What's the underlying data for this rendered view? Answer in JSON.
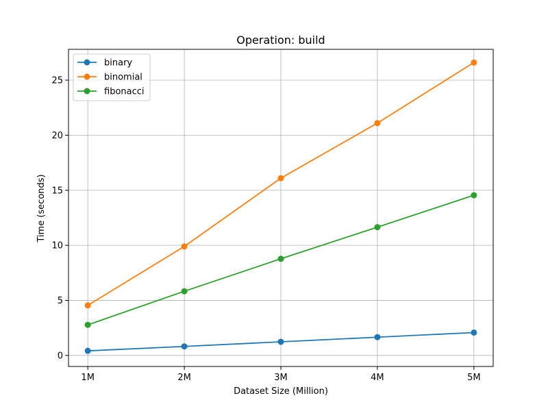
{
  "chart_data": {
    "type": "line",
    "title": "Operation: build",
    "xlabel": "Dataset Size (Million)",
    "ylabel": "Time (seconds)",
    "categories": [
      "1M",
      "2M",
      "3M",
      "4M",
      "5M"
    ],
    "x": [
      1,
      2,
      3,
      4,
      5
    ],
    "xlim": [
      0.8,
      5.2
    ],
    "ylim": [
      -1.0,
      27.8
    ],
    "yticks": [
      0,
      5,
      10,
      15,
      20,
      25
    ],
    "grid": true,
    "legend_position": "top-left",
    "series": [
      {
        "name": "binary",
        "color": "#1f77b4",
        "values": [
          0.42,
          0.82,
          1.24,
          1.66,
          2.08
        ]
      },
      {
        "name": "binomial",
        "color": "#ff7f0e",
        "values": [
          4.55,
          9.9,
          16.1,
          21.1,
          26.6
        ]
      },
      {
        "name": "fibonacci",
        "color": "#2ca02c",
        "values": [
          2.78,
          5.83,
          8.78,
          11.65,
          14.55
        ]
      }
    ]
  }
}
